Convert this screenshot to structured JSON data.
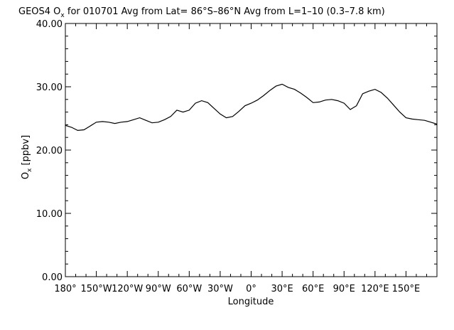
{
  "chart_data": {
    "type": "line",
    "title_prefix": "GEOS4 O",
    "title_subscript": "x",
    "title_suffix": " for 010701 Avg from Lat= 86°S–86°N Avg from L=1–10 (0.3–7.8 km)",
    "xlabel": "Longitude",
    "ylabel_prefix": "O",
    "ylabel_subscript": "x",
    "ylabel_suffix": " [ppbv]",
    "xlim": [
      -180,
      180
    ],
    "ylim": [
      0,
      40
    ],
    "x_ticks": [
      {
        "value": -180,
        "label": "180°"
      },
      {
        "value": -150,
        "label": "150°W"
      },
      {
        "value": -120,
        "label": "120°W"
      },
      {
        "value": -90,
        "label": "90°W"
      },
      {
        "value": -60,
        "label": "60°W"
      },
      {
        "value": -30,
        "label": "30°W"
      },
      {
        "value": 0,
        "label": "0°"
      },
      {
        "value": 30,
        "label": "30°E"
      },
      {
        "value": 60,
        "label": "60°E"
      },
      {
        "value": 90,
        "label": "90°E"
      },
      {
        "value": 120,
        "label": "120°E"
      },
      {
        "value": 150,
        "label": "150°E"
      }
    ],
    "y_ticks": [
      {
        "value": 0,
        "label": "0.00"
      },
      {
        "value": 10,
        "label": "10.00"
      },
      {
        "value": 20,
        "label": "20.00"
      },
      {
        "value": 30,
        "label": "30.00"
      },
      {
        "value": 40,
        "label": "40.00"
      }
    ],
    "series": [
      {
        "color": "#000000",
        "x": [
          -180,
          -174,
          -168,
          -162,
          -156,
          -150,
          -144,
          -138,
          -132,
          -126,
          -120,
          -114,
          -108,
          -102,
          -96,
          -90,
          -84,
          -78,
          -72,
          -66,
          -60,
          -54,
          -48,
          -42,
          -36,
          -30,
          -24,
          -18,
          -12,
          -6,
          0,
          6,
          12,
          18,
          24,
          30,
          36,
          42,
          48,
          54,
          60,
          66,
          72,
          78,
          84,
          90,
          96,
          102,
          108,
          114,
          120,
          126,
          132,
          138,
          144,
          150,
          156,
          162,
          168,
          174,
          180
        ],
        "y": [
          23.9,
          23.6,
          23.1,
          23.2,
          23.8,
          24.4,
          24.5,
          24.4,
          24.2,
          24.4,
          24.5,
          24.8,
          25.1,
          24.7,
          24.3,
          24.4,
          24.8,
          25.3,
          26.3,
          26.0,
          26.3,
          27.4,
          27.8,
          27.5,
          26.6,
          25.7,
          25.1,
          25.3,
          26.1,
          27.0,
          27.4,
          27.9,
          28.6,
          29.4,
          30.1,
          30.4,
          29.9,
          29.6,
          29.0,
          28.3,
          27.5,
          27.6,
          27.9,
          28.0,
          27.8,
          27.4,
          26.4,
          27.0,
          28.9,
          29.3,
          29.6,
          29.1,
          28.2,
          27.1,
          26.0,
          25.1,
          24.9,
          24.8,
          24.7,
          24.4,
          24.1
        ]
      }
    ],
    "grid": false
  }
}
